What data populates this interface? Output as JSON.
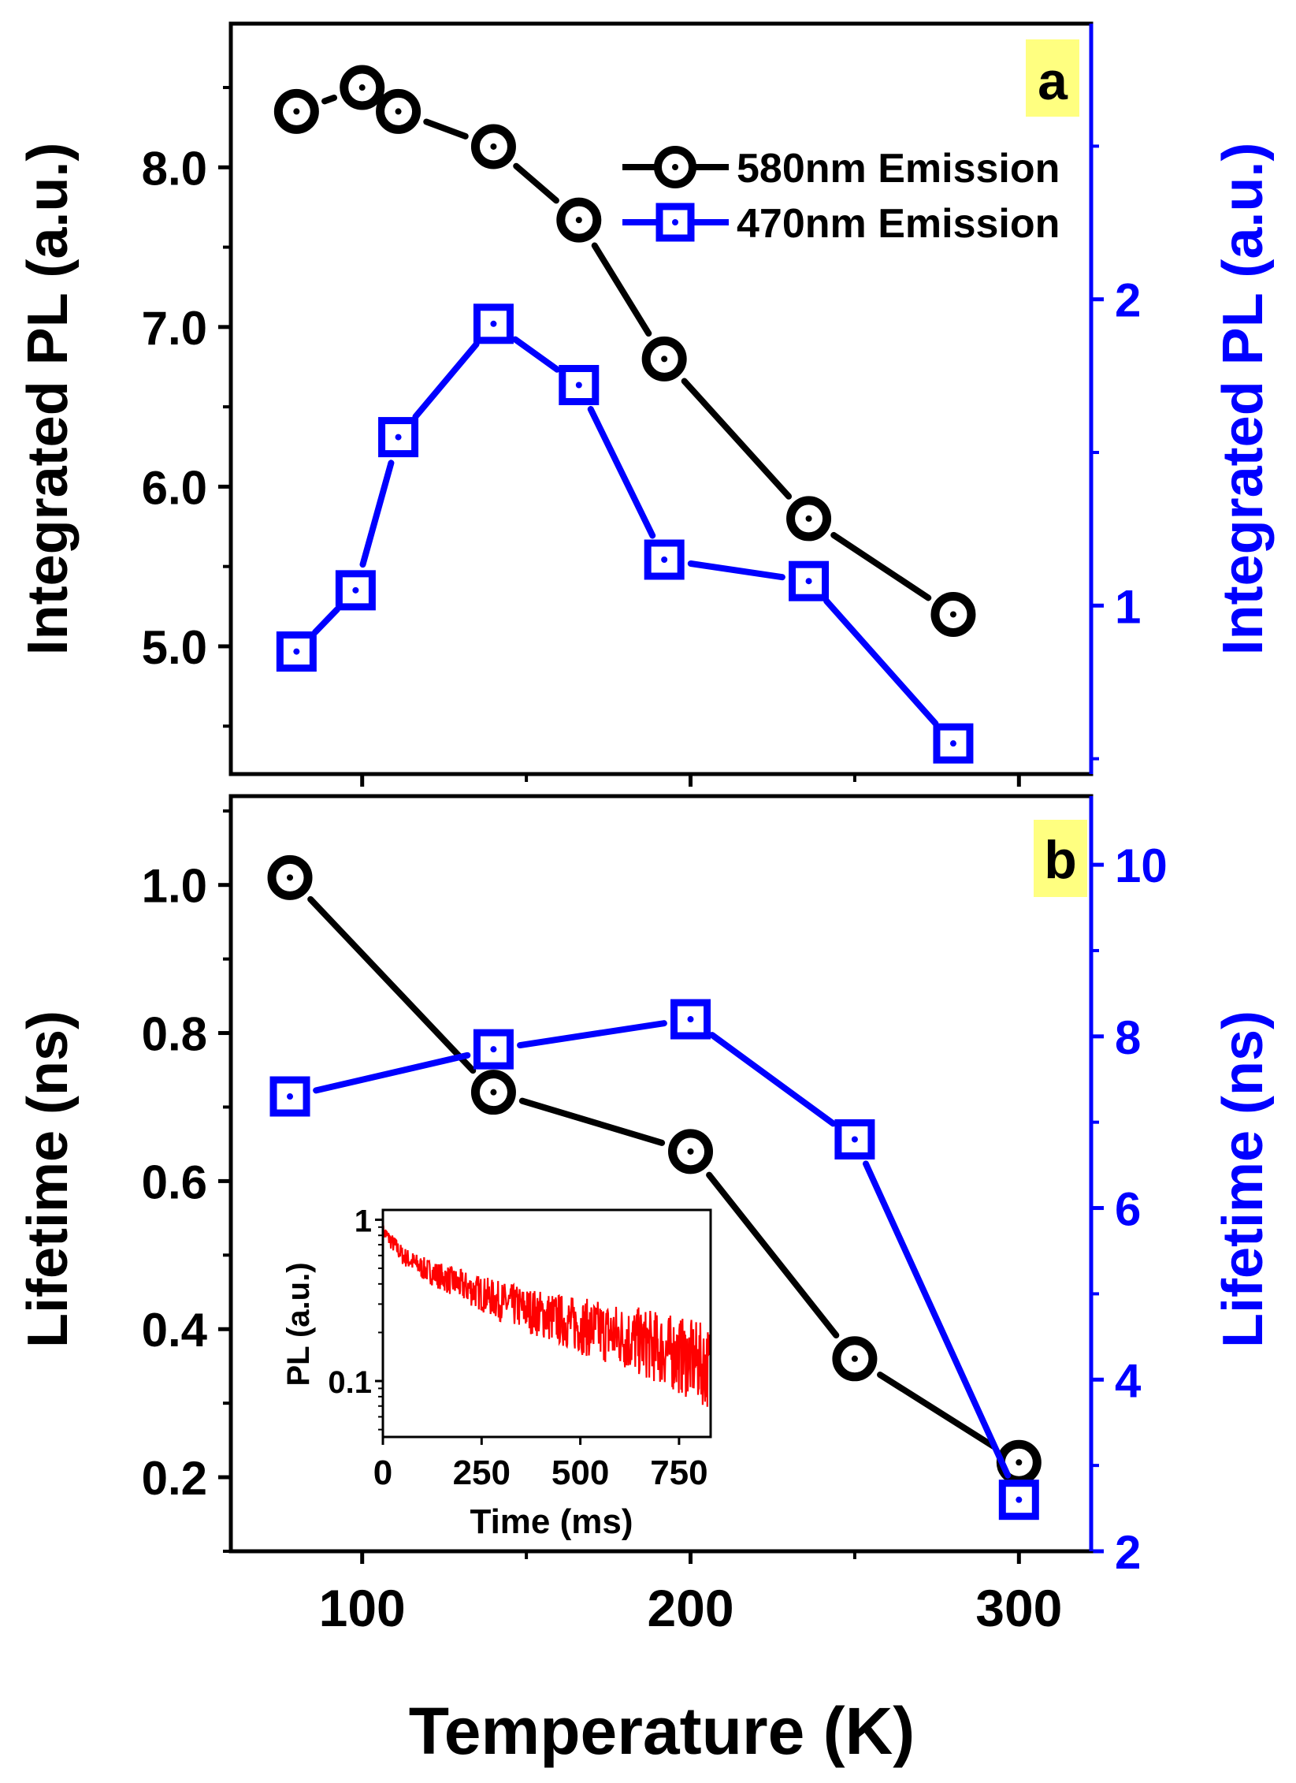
{
  "chart_data": [
    {
      "panel": "a",
      "type": "line",
      "xlabel": "Temperature (K)",
      "xlim": [
        60,
        322
      ],
      "xticks": [
        100,
        200,
        300
      ],
      "ylabel_left": "Integrated PL (a.u.)",
      "ylim_left": [
        4.2,
        8.9
      ],
      "yticks_left": [
        5.0,
        6.0,
        7.0,
        8.0
      ],
      "ytick_labels_left": [
        "5.0",
        "6.0",
        "7.0",
        "8.0"
      ],
      "ylabel_right": "Integrated PL (a.u.)",
      "ylim_right": [
        0.45,
        2.9
      ],
      "yticks_right": [
        1,
        2
      ],
      "ytick_labels_right": [
        "1",
        "2"
      ],
      "series": [
        {
          "name": "580nm Emission",
          "axis": "left",
          "marker": "circle",
          "color": "#000000",
          "x": [
            80,
            100,
            111,
            140,
            166,
            192,
            236,
            280
          ],
          "y": [
            8.35,
            8.5,
            8.35,
            8.13,
            7.67,
            6.8,
            5.8,
            5.2
          ]
        },
        {
          "name": "470nm Emission",
          "axis": "right",
          "marker": "square",
          "color": "#0000ff",
          "x": [
            80,
            98,
            111,
            140,
            166,
            192,
            236,
            280
          ],
          "y": [
            0.85,
            1.05,
            1.55,
            1.92,
            1.72,
            1.15,
            1.08,
            0.55
          ]
        }
      ],
      "legend_position": "top-right",
      "grid": false
    },
    {
      "panel": "b",
      "type": "line",
      "xlabel": "Temperature (K)",
      "xlim": [
        60,
        322
      ],
      "xticks": [
        100,
        200,
        300
      ],
      "xtick_labels": [
        "100",
        "200",
        "300"
      ],
      "ylabel_left": "Lifetime (ns)",
      "ylim_left": [
        0.1,
        1.12
      ],
      "yticks_left": [
        0.2,
        0.4,
        0.6,
        0.8,
        1.0
      ],
      "ytick_labels_left": [
        "0.2",
        "0.4",
        "0.6",
        "0.8",
        "1.0"
      ],
      "ylabel_right": "Lifetime (ns)",
      "ylim_right": [
        2,
        10.8
      ],
      "yticks_right": [
        2,
        4,
        6,
        8,
        10
      ],
      "ytick_labels_right": [
        "2",
        "4",
        "6",
        "8",
        "10"
      ],
      "series": [
        {
          "name": "580nm Emission",
          "axis": "left",
          "marker": "circle",
          "color": "#000000",
          "x": [
            78,
            140,
            200,
            250,
            300
          ],
          "y": [
            1.01,
            0.72,
            0.64,
            0.36,
            0.22
          ]
        },
        {
          "name": "470nm Emission",
          "axis": "right",
          "marker": "square",
          "color": "#0000ff",
          "x": [
            78,
            140,
            200,
            250,
            300
          ],
          "y": [
            7.3,
            7.85,
            8.2,
            6.8,
            2.6
          ]
        }
      ],
      "grid": false
    },
    {
      "panel": "b-inset",
      "type": "line",
      "xlabel": "Time (ms)",
      "xlim": [
        0,
        830
      ],
      "xticks": [
        0,
        250,
        500,
        750
      ],
      "xtick_labels": [
        "0",
        "250",
        "500",
        "750"
      ],
      "ylabel": "PL (a.u.)",
      "yscale": "log",
      "ylim": [
        0.045,
        1.15
      ],
      "yticks": [
        0.1,
        1
      ],
      "ytick_labels": [
        "0.1",
        "1"
      ],
      "series": [
        {
          "color": "#ff0000",
          "decay": "PL(t) ≈ 0.48·exp(−t/30) + 0.52·exp(−t/1100), noisy",
          "x": [
            0,
            50,
            100,
            200,
            300,
            400,
            500,
            600,
            700,
            800,
            830
          ],
          "y": [
            0.85,
            0.6,
            0.5,
            0.39,
            0.31,
            0.26,
            0.22,
            0.19,
            0.16,
            0.13,
            0.12
          ]
        }
      ],
      "grid": false
    }
  ],
  "panel_a_label": "a",
  "panel_b_label": "b",
  "legend": {
    "entry_580": "580nm Emission",
    "entry_470": "470nm Emission"
  },
  "colors": {
    "left_axis": "#000000",
    "right_axis": "#0000ff",
    "inset_trace": "#ff0000",
    "panel_label_bg": "#ffff80"
  }
}
